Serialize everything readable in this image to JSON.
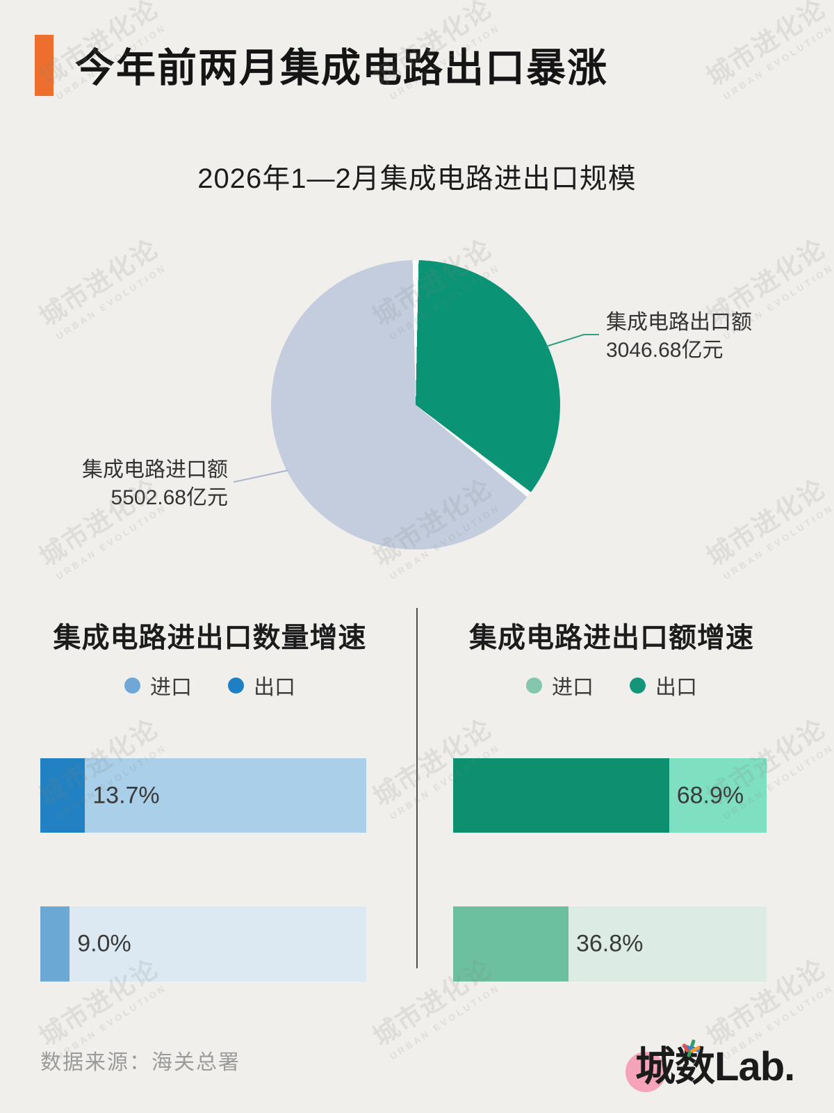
{
  "header": {
    "title": "今年前两月集成电路出口暴涨",
    "accent_color": "#ee6f2d"
  },
  "watermark": {
    "line1": "城市进化论",
    "line2": "URBAN EVOLUTION"
  },
  "chart_data": [
    {
      "type": "pie",
      "title": "2026年1—2月集成电路进出口规模",
      "unit": "亿元",
      "start_angle_deg": 0,
      "direction": "clockwise",
      "slices": [
        {
          "label": "集成电路出口额",
          "value": 3046.68,
          "value_label": "3046.68亿元",
          "color": "#0a9475"
        },
        {
          "label": "集成电路进口额",
          "value": 5502.68,
          "value_label": "5502.68亿元",
          "color": "#c3cdde"
        }
      ],
      "leader_line_colors": {
        "export": "#2f9f80",
        "import": "#aab6c9"
      }
    },
    {
      "type": "bar",
      "title": "集成电路进出口数量增速",
      "xmax": 100,
      "legend": [
        {
          "label": "进口",
          "color": "#6fa8d6"
        },
        {
          "label": "出口",
          "color": "#1f7fc4"
        }
      ],
      "bars": [
        {
          "name": "出口",
          "value": 13.7,
          "label": "13.7%",
          "fill": "#2181c2",
          "track": "#a9cfe9"
        },
        {
          "name": "进口",
          "value": 9.0,
          "label": "9.0%",
          "fill": "#6ca8d4",
          "track": "#dde9f2"
        }
      ]
    },
    {
      "type": "bar",
      "title": "集成电路进出口额增速",
      "xmax": 100,
      "legend": [
        {
          "label": "进口",
          "color": "#85c7ae"
        },
        {
          "label": "出口",
          "color": "#14957a"
        }
      ],
      "bars": [
        {
          "name": "出口",
          "value": 68.9,
          "label": "68.9%",
          "fill": "#0e9070",
          "track": "#7fdfc1"
        },
        {
          "name": "进口",
          "value": 36.8,
          "label": "36.8%",
          "fill": "#6cc0a0",
          "track": "#dcebe3"
        }
      ]
    }
  ],
  "footer": {
    "source": "数据来源：海关总署",
    "logo": {
      "text_cn": "城数",
      "text_en": "Lab.",
      "circle_color": "#f4a3b8"
    }
  }
}
